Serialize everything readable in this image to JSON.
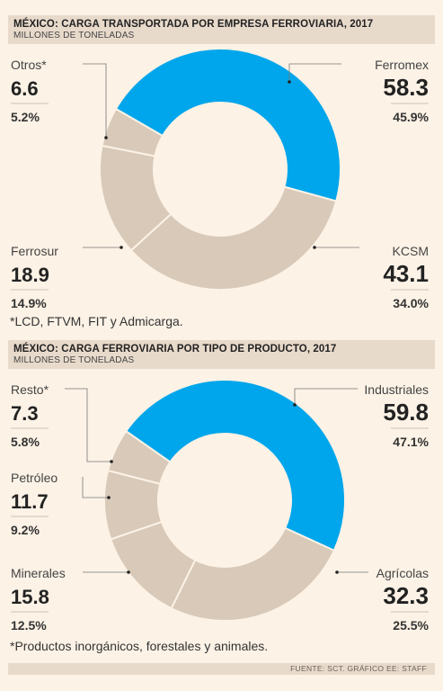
{
  "colors": {
    "highlight": "#00a6eb",
    "other": "#d8c9b8",
    "background": "#fcf2e6",
    "header": "#e8dacb"
  },
  "chart_data": [
    {
      "type": "pie",
      "title": "MÉXICO: CARGA TRANSPORTADA POR EMPRESA FERROVIARIA, 2017",
      "subtitle": "MILLONES DE TONELADAS",
      "slices": [
        {
          "label": "Ferromex",
          "value": 58.3,
          "value_text": "58.3",
          "percent": "45.9%",
          "highlight": true
        },
        {
          "label": "KCSM",
          "value": 43.1,
          "value_text": "43.1",
          "percent": "34.0%",
          "highlight": false
        },
        {
          "label": "Ferrosur",
          "value": 18.9,
          "value_text": "18.9",
          "percent": "14.9%",
          "highlight": false
        },
        {
          "label": "Otros*",
          "value": 6.6,
          "value_text": "6.6",
          "percent": "5.2%",
          "highlight": false
        }
      ],
      "note": "*LCD, FTVM, FIT y Admicarga."
    },
    {
      "type": "pie",
      "title": "MÉXICO: CARGA FERROVIARIA POR TIPO DE PRODUCTO, 2017",
      "subtitle": "MILLONES DE TONELADAS",
      "slices": [
        {
          "label": "Industriales",
          "value": 59.8,
          "value_text": "59.8",
          "percent": "47.1%",
          "highlight": true
        },
        {
          "label": "Agrícolas",
          "value": 32.3,
          "value_text": "32.3",
          "percent": "25.5%",
          "highlight": false
        },
        {
          "label": "Minerales",
          "value": 15.8,
          "value_text": "15.8",
          "percent": "12.5%",
          "highlight": false
        },
        {
          "label": "Petróleo",
          "value": 11.7,
          "value_text": "11.7",
          "percent": "9.2%",
          "highlight": false
        },
        {
          "label": "Resto*",
          "value": 7.3,
          "value_text": "7.3",
          "percent": "5.8%",
          "highlight": false
        }
      ],
      "note": "*Productos inorgánicos, forestales y animales."
    }
  ],
  "footer": {
    "source": "FUENTE: SCT. GRÁFICO EE: STAFF"
  }
}
